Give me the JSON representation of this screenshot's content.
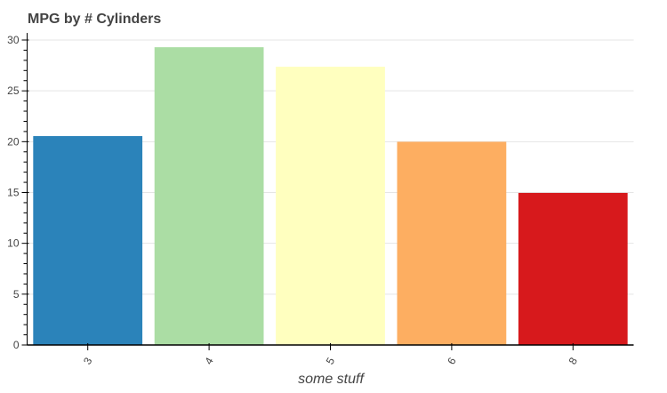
{
  "chart_data": {
    "type": "bar",
    "title": "MPG by # Cylinders",
    "xlabel": "some stuff",
    "ylabel": "",
    "categories": [
      "3",
      "4",
      "5",
      "6",
      "8"
    ],
    "values": [
      20.55,
      29.29,
      27.37,
      19.99,
      14.96
    ],
    "colors": [
      "#2b83ba",
      "#abdda4",
      "#ffffbf",
      "#fdae61",
      "#d7191c"
    ],
    "ylim": [
      0,
      30
    ],
    "yticks": [
      0,
      5,
      10,
      15,
      20,
      25,
      30
    ],
    "grid": true,
    "legend": "none"
  }
}
